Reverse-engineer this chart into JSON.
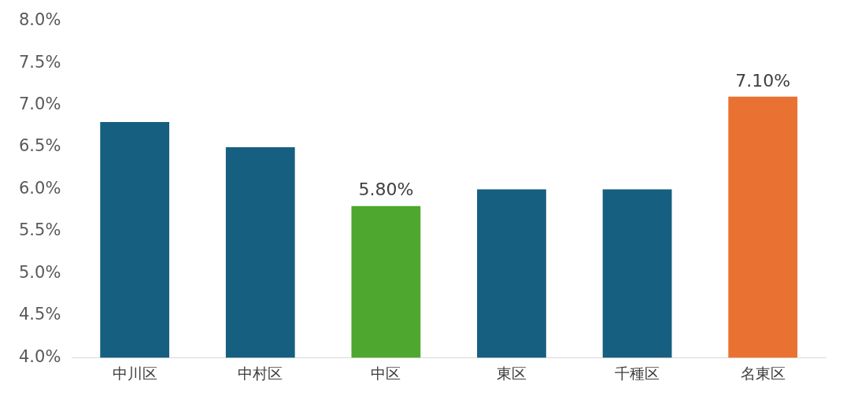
{
  "chart_data": {
    "type": "bar",
    "categories": [
      "中川区",
      "中村区",
      "中区",
      "東区",
      "千種区",
      "名東区"
    ],
    "values": [
      6.8,
      6.5,
      5.8,
      6.0,
      6.0,
      7.1
    ],
    "colors": [
      "#175f80",
      "#175f80",
      "#4ea72e",
      "#175f80",
      "#175f80",
      "#e97132"
    ],
    "value_labels": [
      null,
      null,
      "5.80%",
      null,
      null,
      "7.10%"
    ],
    "ylim": [
      4,
      8
    ],
    "yticks": [
      {
        "value": 4,
        "label": "4.0%"
      },
      {
        "value": 4.5,
        "label": "4.5%"
      },
      {
        "value": 5,
        "label": "5.0%"
      },
      {
        "value": 5.5,
        "label": "5.5%"
      },
      {
        "value": 6,
        "label": "6.0%"
      },
      {
        "value": 6.5,
        "label": "6.5%"
      },
      {
        "value": 7,
        "label": "7.0%"
      },
      {
        "value": 7.5,
        "label": "7.5%"
      },
      {
        "value": 8,
        "label": "8.0%"
      }
    ],
    "grid": false,
    "legend": false
  }
}
